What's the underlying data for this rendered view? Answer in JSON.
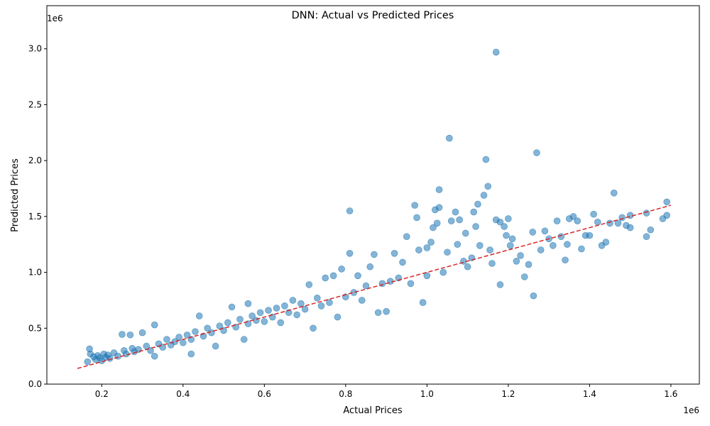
{
  "chart_data": {
    "type": "scatter",
    "title": "DNN: Actual vs Predicted Prices",
    "xlabel": "Actual Prices",
    "ylabel": "Predicted Prices",
    "x_offset_text": "1e6",
    "y_offset_text": "1e6",
    "xlim": [
      0.065,
      1.67
    ],
    "ylim": [
      0.0,
      3.1
    ],
    "x_ticks": [
      {
        "value": 0.2,
        "label": "0.2"
      },
      {
        "value": 0.4,
        "label": "0.4"
      },
      {
        "value": 0.6,
        "label": "0.6"
      },
      {
        "value": 0.8,
        "label": "0.8"
      },
      {
        "value": 1.0,
        "label": "1.0"
      },
      {
        "value": 1.2,
        "label": "1.2"
      },
      {
        "value": 1.4,
        "label": "1.4"
      },
      {
        "value": 1.6,
        "label": "1.6"
      }
    ],
    "y_ticks": [
      {
        "value": 0.0,
        "label": "0.0"
      },
      {
        "value": 0.5,
        "label": "0.5"
      },
      {
        "value": 1.0,
        "label": "1.0"
      },
      {
        "value": 1.5,
        "label": "1.5"
      },
      {
        "value": 2.0,
        "label": "2.0"
      },
      {
        "value": 2.5,
        "label": "2.5"
      },
      {
        "value": 3.0,
        "label": "3.0"
      }
    ],
    "grid": false,
    "point_color": "#1f77b4",
    "point_alpha": 0.55,
    "reference_line": {
      "color": "#d62728",
      "style": "dashed",
      "x": [
        0.14,
        1.6
      ],
      "y": [
        0.14,
        1.6
      ]
    },
    "series": [
      {
        "points": [
          [
            0.165,
            0.2
          ],
          [
            0.17,
            0.315
          ],
          [
            0.172,
            0.27
          ],
          [
            0.18,
            0.245
          ],
          [
            0.185,
            0.22
          ],
          [
            0.19,
            0.255
          ],
          [
            0.195,
            0.235
          ],
          [
            0.2,
            0.21
          ],
          [
            0.205,
            0.27
          ],
          [
            0.21,
            0.24
          ],
          [
            0.215,
            0.26
          ],
          [
            0.22,
            0.23
          ],
          [
            0.23,
            0.28
          ],
          [
            0.24,
            0.25
          ],
          [
            0.25,
            0.445
          ],
          [
            0.255,
            0.3
          ],
          [
            0.26,
            0.27
          ],
          [
            0.27,
            0.44
          ],
          [
            0.275,
            0.32
          ],
          [
            0.28,
            0.29
          ],
          [
            0.29,
            0.31
          ],
          [
            0.3,
            0.46
          ],
          [
            0.31,
            0.34
          ],
          [
            0.32,
            0.3
          ],
          [
            0.33,
            0.53
          ],
          [
            0.33,
            0.25
          ],
          [
            0.34,
            0.36
          ],
          [
            0.35,
            0.33
          ],
          [
            0.36,
            0.4
          ],
          [
            0.37,
            0.35
          ],
          [
            0.38,
            0.38
          ],
          [
            0.39,
            0.42
          ],
          [
            0.4,
            0.37
          ],
          [
            0.41,
            0.44
          ],
          [
            0.42,
            0.27
          ],
          [
            0.42,
            0.4
          ],
          [
            0.43,
            0.47
          ],
          [
            0.44,
            0.61
          ],
          [
            0.45,
            0.43
          ],
          [
            0.46,
            0.5
          ],
          [
            0.47,
            0.46
          ],
          [
            0.48,
            0.34
          ],
          [
            0.49,
            0.52
          ],
          [
            0.5,
            0.48
          ],
          [
            0.51,
            0.55
          ],
          [
            0.52,
            0.69
          ],
          [
            0.53,
            0.51
          ],
          [
            0.54,
            0.58
          ],
          [
            0.55,
            0.4
          ],
          [
            0.56,
            0.72
          ],
          [
            0.56,
            0.54
          ],
          [
            0.57,
            0.61
          ],
          [
            0.58,
            0.57
          ],
          [
            0.59,
            0.64
          ],
          [
            0.6,
            0.56
          ],
          [
            0.61,
            0.66
          ],
          [
            0.62,
            0.6
          ],
          [
            0.63,
            0.68
          ],
          [
            0.64,
            0.55
          ],
          [
            0.65,
            0.7
          ],
          [
            0.66,
            0.64
          ],
          [
            0.67,
            0.75
          ],
          [
            0.68,
            0.62
          ],
          [
            0.69,
            0.72
          ],
          [
            0.7,
            0.67
          ],
          [
            0.71,
            0.89
          ],
          [
            0.72,
            0.5
          ],
          [
            0.73,
            0.77
          ],
          [
            0.74,
            0.7
          ],
          [
            0.75,
            0.95
          ],
          [
            0.76,
            0.73
          ],
          [
            0.77,
            0.97
          ],
          [
            0.78,
            0.6
          ],
          [
            0.79,
            1.03
          ],
          [
            0.8,
            0.78
          ],
          [
            0.81,
            1.55
          ],
          [
            0.81,
            1.17
          ],
          [
            0.82,
            0.82
          ],
          [
            0.83,
            0.97
          ],
          [
            0.84,
            0.75
          ],
          [
            0.85,
            0.88
          ],
          [
            0.86,
            1.05
          ],
          [
            0.87,
            1.16
          ],
          [
            0.88,
            0.64
          ],
          [
            0.89,
            0.9
          ],
          [
            0.9,
            0.65
          ],
          [
            0.91,
            0.92
          ],
          [
            0.92,
            1.17
          ],
          [
            0.93,
            0.95
          ],
          [
            0.94,
            1.09
          ],
          [
            0.95,
            1.32
          ],
          [
            0.96,
            0.9
          ],
          [
            0.97,
            1.6
          ],
          [
            0.975,
            1.49
          ],
          [
            0.98,
            1.2
          ],
          [
            0.99,
            0.73
          ],
          [
            1.0,
            1.22
          ],
          [
            1.0,
            0.97
          ],
          [
            1.01,
            1.27
          ],
          [
            1.015,
            1.4
          ],
          [
            1.02,
            1.56
          ],
          [
            1.025,
            1.44
          ],
          [
            1.03,
            1.74
          ],
          [
            1.03,
            1.58
          ],
          [
            1.04,
            1.0
          ],
          [
            1.05,
            1.18
          ],
          [
            1.055,
            2.2
          ],
          [
            1.06,
            1.46
          ],
          [
            1.07,
            1.54
          ],
          [
            1.075,
            1.25
          ],
          [
            1.08,
            1.47
          ],
          [
            1.09,
            1.1
          ],
          [
            1.095,
            1.35
          ],
          [
            1.1,
            1.05
          ],
          [
            1.11,
            1.13
          ],
          [
            1.115,
            1.54
          ],
          [
            1.12,
            1.41
          ],
          [
            1.125,
            1.61
          ],
          [
            1.13,
            1.24
          ],
          [
            1.14,
            1.69
          ],
          [
            1.145,
            2.01
          ],
          [
            1.15,
            1.77
          ],
          [
            1.155,
            1.2
          ],
          [
            1.16,
            1.08
          ],
          [
            1.17,
            2.97
          ],
          [
            1.17,
            1.47
          ],
          [
            1.18,
            0.89
          ],
          [
            1.18,
            1.45
          ],
          [
            1.19,
            1.41
          ],
          [
            1.195,
            1.33
          ],
          [
            1.2,
            1.48
          ],
          [
            1.205,
            1.24
          ],
          [
            1.21,
            1.3
          ],
          [
            1.22,
            1.1
          ],
          [
            1.23,
            1.15
          ],
          [
            1.24,
            0.96
          ],
          [
            1.25,
            1.07
          ],
          [
            1.26,
            1.36
          ],
          [
            1.262,
            0.79
          ],
          [
            1.27,
            2.07
          ],
          [
            1.28,
            1.2
          ],
          [
            1.29,
            1.37
          ],
          [
            1.3,
            1.3
          ],
          [
            1.31,
            1.24
          ],
          [
            1.32,
            1.46
          ],
          [
            1.33,
            1.32
          ],
          [
            1.34,
            1.11
          ],
          [
            1.345,
            1.25
          ],
          [
            1.35,
            1.48
          ],
          [
            1.36,
            1.5
          ],
          [
            1.37,
            1.46
          ],
          [
            1.38,
            1.21
          ],
          [
            1.39,
            1.33
          ],
          [
            1.4,
            1.33
          ],
          [
            1.41,
            1.52
          ],
          [
            1.42,
            1.45
          ],
          [
            1.43,
            1.24
          ],
          [
            1.44,
            1.27
          ],
          [
            1.45,
            1.44
          ],
          [
            1.46,
            1.71
          ],
          [
            1.47,
            1.44
          ],
          [
            1.48,
            1.49
          ],
          [
            1.49,
            1.42
          ],
          [
            1.5,
            1.51
          ],
          [
            1.5,
            1.4
          ],
          [
            1.54,
            1.32
          ],
          [
            1.54,
            1.53
          ],
          [
            1.55,
            1.38
          ],
          [
            1.58,
            1.48
          ],
          [
            1.59,
            1.51
          ],
          [
            1.59,
            1.63
          ]
        ]
      }
    ]
  }
}
